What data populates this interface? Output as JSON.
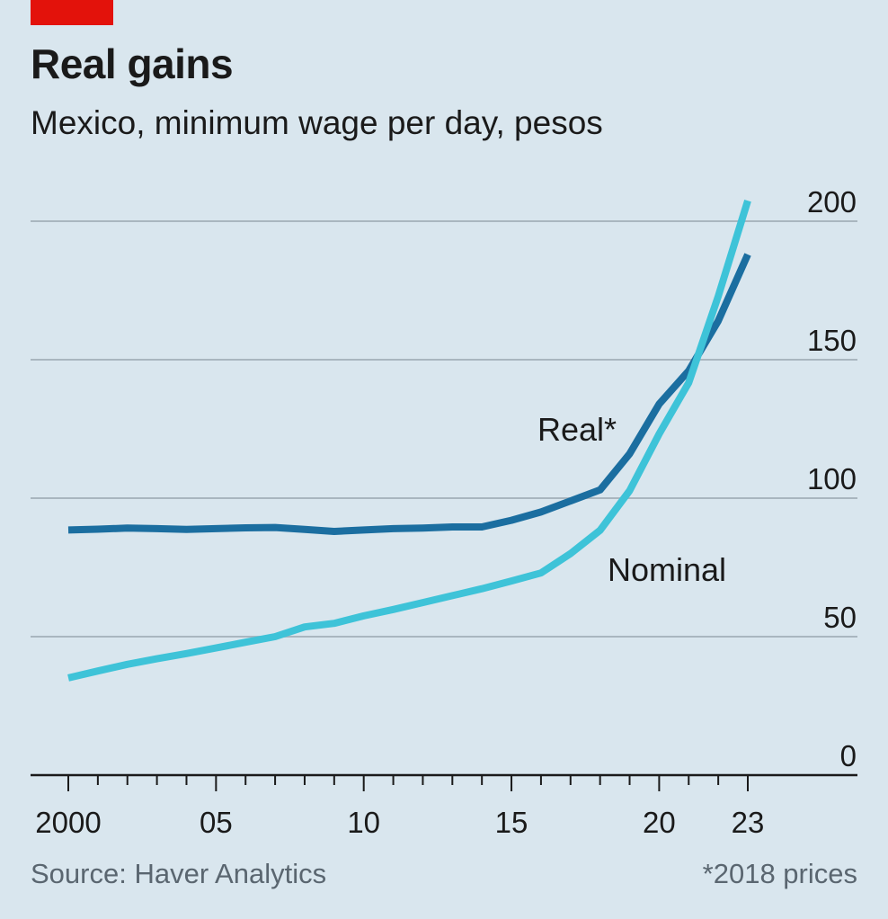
{
  "header": {
    "title": "Real gains",
    "subtitle": "Mexico, minimum wage per day, pesos",
    "tag_color": "#e3120b"
  },
  "footer": {
    "source": "Source: Haver Analytics",
    "note": "*2018 prices"
  },
  "chart_data": {
    "type": "line",
    "title": "Real gains",
    "subtitle": "Mexico, minimum wage per day, pesos",
    "xlim": [
      2000,
      2023
    ],
    "ylim": [
      0,
      200
    ],
    "yticks": [
      0,
      50,
      100,
      150,
      200
    ],
    "xtick_labels": [
      {
        "x": 2000,
        "label": "2000"
      },
      {
        "x": 2005,
        "label": "05"
      },
      {
        "x": 2010,
        "label": "10"
      },
      {
        "x": 2015,
        "label": "15"
      },
      {
        "x": 2020,
        "label": "20"
      },
      {
        "x": 2023,
        "label": "23"
      }
    ],
    "grid": true,
    "y_axis_side": "right",
    "series": [
      {
        "name": "Real*",
        "color": "#1b6ea0",
        "x": [
          2000,
          2001,
          2002,
          2003,
          2004,
          2005,
          2006,
          2007,
          2008,
          2009,
          2010,
          2011,
          2012,
          2013,
          2014,
          2015,
          2016,
          2017,
          2018,
          2019,
          2020,
          2021,
          2022,
          2023
        ],
        "values": [
          88.5,
          88.8,
          89.2,
          89.0,
          88.7,
          89.0,
          89.3,
          89.4,
          88.7,
          88.0,
          88.5,
          89.0,
          89.2,
          89.6,
          89.6,
          92.0,
          95.0,
          99.0,
          103.0,
          116.0,
          134.0,
          146.0,
          164.0,
          188.0
        ]
      },
      {
        "name": "Nominal",
        "color": "#3ec3d8",
        "x": [
          2000,
          2001,
          2002,
          2003,
          2004,
          2005,
          2006,
          2007,
          2008,
          2009,
          2010,
          2011,
          2012,
          2013,
          2014,
          2015,
          2016,
          2017,
          2018,
          2019,
          2020,
          2021,
          2022,
          2023
        ],
        "values": [
          35.1,
          37.6,
          40.0,
          42.0,
          43.9,
          45.9,
          48.0,
          50.0,
          53.5,
          54.8,
          57.5,
          59.8,
          62.3,
          64.8,
          67.3,
          70.1,
          73.0,
          80.0,
          88.4,
          102.7,
          123.2,
          141.7,
          172.9,
          207.4
        ]
      }
    ]
  }
}
